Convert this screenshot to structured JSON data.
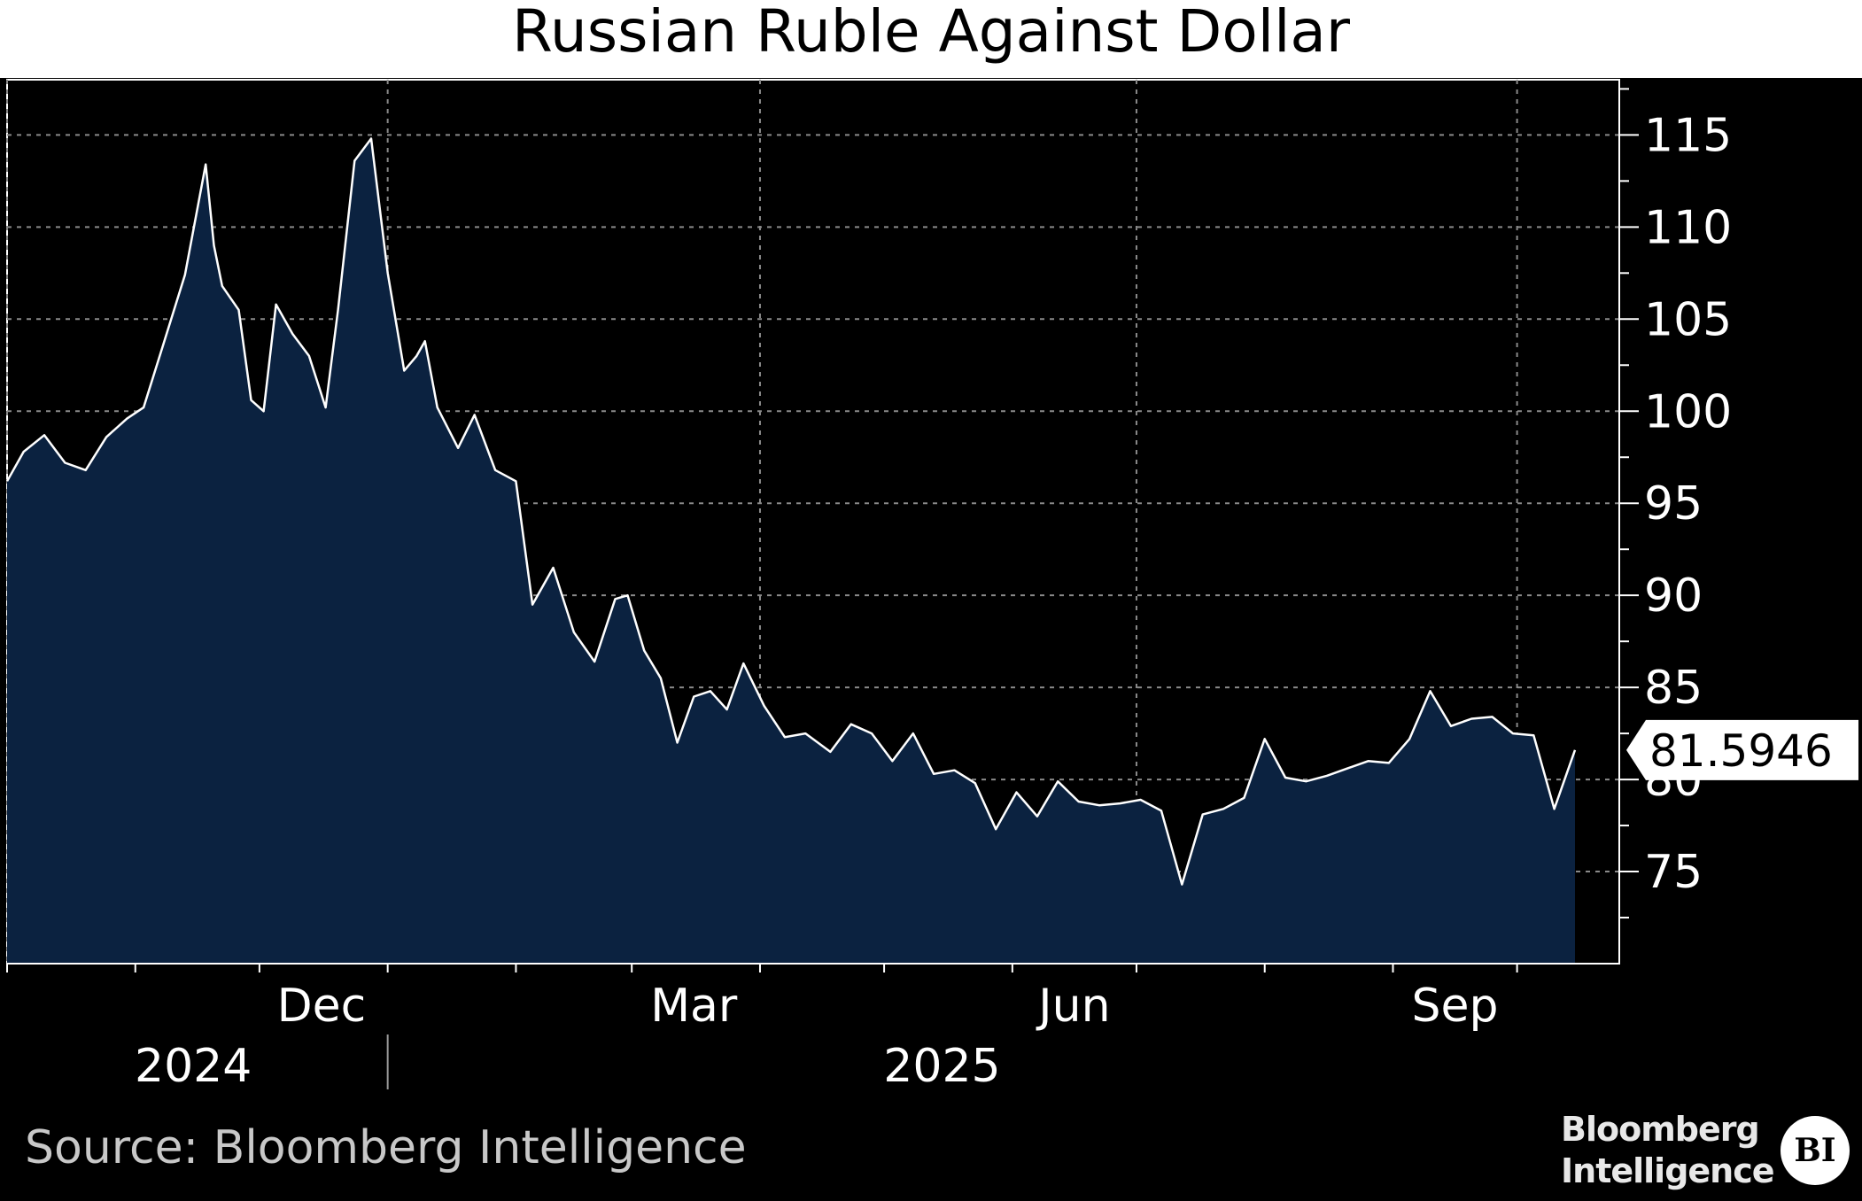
{
  "chart_data": {
    "type": "area",
    "title": "Russian Ruble Against Dollar",
    "xlabel": "",
    "ylabel": "",
    "ylim": [
      70,
      118
    ],
    "yticks": [
      75,
      80,
      85,
      90,
      95,
      100,
      105,
      110,
      115
    ],
    "y_axis_position": "right",
    "grid": true,
    "last_value_label": "81.5946",
    "x_range": [
      "2024-10-01",
      "2025-10-15"
    ],
    "x_month_labels": [
      {
        "label": "Dec",
        "date": "2024-12-01"
      },
      {
        "label": "Mar",
        "date": "2025-03-01"
      },
      {
        "label": "Jun",
        "date": "2025-06-01"
      },
      {
        "label": "Sep",
        "date": "2025-09-01"
      }
    ],
    "x_year_labels": [
      {
        "label": "2024",
        "date": "2024-11-15"
      },
      {
        "label": "2025",
        "date": "2025-05-15"
      }
    ],
    "series": [
      {
        "x": [
          "2024-10-01",
          "2024-10-05",
          "2024-10-10",
          "2024-10-15",
          "2024-10-20",
          "2024-10-25",
          "2024-10-30",
          "2024-11-03",
          "2024-11-08",
          "2024-11-13",
          "2024-11-18",
          "2024-11-20",
          "2024-11-22",
          "2024-11-26",
          "2024-11-29",
          "2024-12-02",
          "2024-12-05",
          "2024-12-09",
          "2024-12-13",
          "2024-12-17",
          "2024-12-20",
          "2024-12-24",
          "2024-12-28",
          "2025-01-01",
          "2025-01-05",
          "2025-01-08",
          "2025-01-10",
          "2025-01-13",
          "2025-01-18",
          "2025-01-22",
          "2025-01-27",
          "2025-02-01",
          "2025-02-05",
          "2025-02-10",
          "2025-02-15",
          "2025-02-20",
          "2025-02-25",
          "2025-02-28",
          "2025-03-04",
          "2025-03-08",
          "2025-03-12",
          "2025-03-16",
          "2025-03-20",
          "2025-03-24",
          "2025-03-28",
          "2025-04-02",
          "2025-04-07",
          "2025-04-12",
          "2025-04-18",
          "2025-04-23",
          "2025-04-28",
          "2025-05-03",
          "2025-05-08",
          "2025-05-13",
          "2025-05-18",
          "2025-05-23",
          "2025-05-28",
          "2025-06-02",
          "2025-06-07",
          "2025-06-12",
          "2025-06-17",
          "2025-06-22",
          "2025-06-27",
          "2025-07-02",
          "2025-07-07",
          "2025-07-12",
          "2025-07-17",
          "2025-07-22",
          "2025-07-27",
          "2025-08-01",
          "2025-08-06",
          "2025-08-11",
          "2025-08-16",
          "2025-08-21",
          "2025-08-26",
          "2025-08-31",
          "2025-09-05",
          "2025-09-10",
          "2025-09-15",
          "2025-09-20",
          "2025-09-25",
          "2025-09-30",
          "2025-10-05",
          "2025-10-10",
          "2025-10-15"
        ],
        "values": [
          96.2,
          97.8,
          98.7,
          97.2,
          96.8,
          98.6,
          99.6,
          100.2,
          103.8,
          107.4,
          113.4,
          109.0,
          106.8,
          105.5,
          100.6,
          100.0,
          105.8,
          104.2,
          103.0,
          100.2,
          105.5,
          113.6,
          114.8,
          107.5,
          102.2,
          103.0,
          103.8,
          100.2,
          98.0,
          99.8,
          96.8,
          96.2,
          89.5,
          91.5,
          88.0,
          86.4,
          89.8,
          90.0,
          87.0,
          85.5,
          82.0,
          84.5,
          84.8,
          83.8,
          86.3,
          84.0,
          82.3,
          82.5,
          81.5,
          83.0,
          82.5,
          81.0,
          82.5,
          80.3,
          80.5,
          79.8,
          77.3,
          79.3,
          78.0,
          79.9,
          78.8,
          78.6,
          78.7,
          78.9,
          78.3,
          74.3,
          78.1,
          78.4,
          79.0,
          82.2,
          80.1,
          79.9,
          80.2,
          80.6,
          81.0,
          80.9,
          82.2,
          84.8,
          82.9,
          83.3,
          83.4,
          82.5,
          82.4,
          78.4,
          81.6
        ]
      }
    ]
  },
  "footer": {
    "source": "Source: Bloomberg Intelligence",
    "brand_line1": "Bloomberg",
    "brand_line2": "Intelligence",
    "badge": "BI"
  },
  "colors": {
    "background": "#000000",
    "area_fill": "#0b2240",
    "line": "#ffffff",
    "grid": "#8a8a8a",
    "axis_text": "#ffffff",
    "title_background": "#ffffff"
  }
}
